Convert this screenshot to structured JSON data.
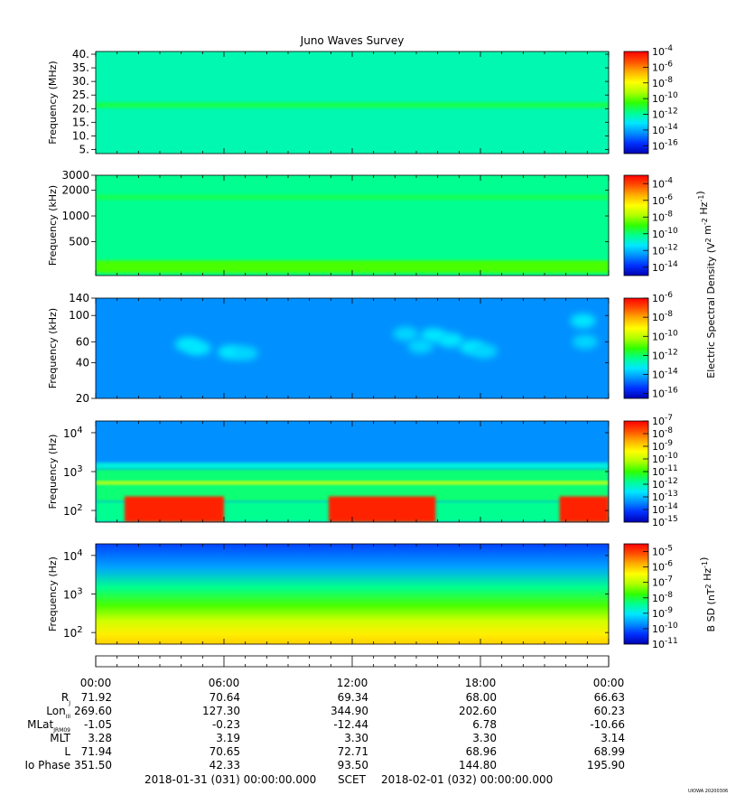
{
  "title": "Juno Waves Survey",
  "colors": {
    "colormap": [
      "#0000b0",
      "#0030ff",
      "#0090ff",
      "#00e8ff",
      "#00ff90",
      "#30ff00",
      "#b0ff00",
      "#ffff00",
      "#ffb000",
      "#ff5000",
      "#ff0000"
    ]
  },
  "chart_data": [
    {
      "type": "heatmap",
      "panel": "Electric 1",
      "ylabel": "Frequency (MHz)",
      "yscale": "linear",
      "ylim": [
        3.5,
        41
      ],
      "yticks": [
        {
          "v": 40,
          "label": "40."
        },
        {
          "v": 35,
          "label": "35."
        },
        {
          "v": 30,
          "label": "30."
        },
        {
          "v": 25,
          "label": "25."
        },
        {
          "v": 20,
          "label": "20."
        },
        {
          "v": 15,
          "label": "15."
        },
        {
          "v": 10,
          "label": "10."
        },
        {
          "v": 5,
          "label": "5."
        }
      ],
      "background_level": 0.37,
      "bands": [
        {
          "y0": 20.3,
          "y1": 22.3,
          "level": 0.45
        }
      ],
      "blobs": [],
      "colorbar": {
        "scale": "log",
        "range_exp": [
          -17,
          -4
        ],
        "tick_exps": [
          -4,
          -6,
          -8,
          -10,
          -12,
          -14,
          -16
        ]
      }
    },
    {
      "type": "heatmap",
      "panel": "Electric 2",
      "ylabel": "Frequency (kHz)",
      "yscale": "log",
      "ylim": [
        200,
        3000
      ],
      "yticks": [
        {
          "v": 3000,
          "label": "3000"
        },
        {
          "v": 2000,
          "label": "2000"
        },
        {
          "v": 1000,
          "label": "1000"
        },
        {
          "v": 500,
          "label": "500"
        }
      ],
      "background_level": 0.4,
      "bands": [
        {
          "y0": 1550,
          "y1": 1780,
          "level": 0.44
        },
        {
          "y0": 215,
          "y1": 300,
          "level": 0.52
        }
      ],
      "blobs": [],
      "colorbar": {
        "scale": "log",
        "range_exp": [
          -15,
          -3
        ],
        "tick_exps": [
          -4,
          -6,
          -8,
          -10,
          -12,
          -14
        ]
      }
    },
    {
      "type": "heatmap",
      "panel": "Electric 3",
      "ylabel": "Frequency (kHz)",
      "yscale": "log",
      "ylim": [
        20,
        140
      ],
      "yticks": [
        {
          "v": 140,
          "label": "140"
        },
        {
          "v": 100,
          "label": "100"
        },
        {
          "v": 60,
          "label": "60"
        },
        {
          "v": 40,
          "label": "40"
        },
        {
          "v": 20,
          "label": "20"
        }
      ],
      "background_level": 0.2,
      "bands": [],
      "blobs": [
        {
          "t": 4.3,
          "f": 57,
          "level": 0.3
        },
        {
          "t": 4.8,
          "f": 53,
          "level": 0.3
        },
        {
          "t": 6.3,
          "f": 49,
          "level": 0.3
        },
        {
          "t": 7.0,
          "f": 48,
          "level": 0.28
        },
        {
          "t": 14.5,
          "f": 70,
          "level": 0.28
        },
        {
          "t": 15.8,
          "f": 68,
          "level": 0.3
        },
        {
          "t": 16.6,
          "f": 62,
          "level": 0.3
        },
        {
          "t": 17.6,
          "f": 54,
          "level": 0.3
        },
        {
          "t": 18.2,
          "f": 50,
          "level": 0.28
        },
        {
          "t": 15.2,
          "f": 55,
          "level": 0.28
        },
        {
          "t": 22.8,
          "f": 90,
          "level": 0.3
        },
        {
          "t": 22.9,
          "f": 60,
          "level": 0.28
        }
      ],
      "colorbar": {
        "scale": "log",
        "range_exp": [
          -16.5,
          -6
        ],
        "tick_exps": [
          -6,
          -8,
          -10,
          -12,
          -14,
          -16
        ]
      }
    },
    {
      "type": "heatmap",
      "panel": "Electric 4",
      "ylabel": "Frequency (Hz)",
      "yscale": "log",
      "ylim": [
        50,
        20000
      ],
      "yticks": [
        {
          "v": 10000,
          "label": "10^4"
        },
        {
          "v": 1000,
          "label": "10^3"
        },
        {
          "v": 100,
          "label": "10^2"
        }
      ],
      "background_level": 0.2,
      "bands": [
        {
          "y0": 1150,
          "y1": 1700,
          "level": 0.33
        },
        {
          "y0": 170,
          "y1": 1150,
          "level": 0.42
        },
        {
          "y0": 470,
          "y1": 560,
          "level": 0.66
        },
        {
          "y0": 50,
          "y1": 170,
          "level": 0.4
        }
      ],
      "blocks": [
        {
          "t0": 1.35,
          "t1": 6.0,
          "f0": 50,
          "f1": 230,
          "level": 0.96
        },
        {
          "t0": 10.9,
          "t1": 15.9,
          "f0": 50,
          "f1": 230,
          "level": 0.96
        },
        {
          "t0": 21.7,
          "t1": 24.0,
          "f0": 50,
          "f1": 230,
          "level": 0.96
        }
      ],
      "blobs": [],
      "colorbar": {
        "scale": "log",
        "range_exp": [
          -15,
          -7
        ],
        "tick_exps": [
          -7,
          -8,
          -9,
          -10,
          -11,
          -12,
          -13,
          -14,
          -15
        ]
      }
    },
    {
      "type": "heatmap",
      "panel": "Magnetic",
      "ylabel": "Frequency (Hz)",
      "yscale": "log",
      "ylim": [
        50,
        20000
      ],
      "yticks": [
        {
          "v": 10000,
          "label": "10^4"
        },
        {
          "v": 1000,
          "label": "10^3"
        },
        {
          "v": 100,
          "label": "10^2"
        }
      ],
      "gradient_stops": [
        {
          "f": 20000,
          "level": 0.12
        },
        {
          "f": 5000,
          "level": 0.22
        },
        {
          "f": 1500,
          "level": 0.4
        },
        {
          "f": 500,
          "level": 0.52
        },
        {
          "f": 200,
          "level": 0.64
        },
        {
          "f": 90,
          "level": 0.72
        },
        {
          "f": 50,
          "level": 0.76
        }
      ],
      "blobs": [],
      "colorbar": {
        "scale": "log",
        "range_exp": [
          -11,
          -4.5
        ],
        "tick_exps": [
          -5,
          -6,
          -7,
          -8,
          -9,
          -10,
          -11
        ]
      }
    }
  ],
  "colorbar_labels": {
    "electric": "Electric Spectral Density (V^2 m^-2 Hz^-1)",
    "magnetic": "B SD (nT^2 Hz^-1)"
  },
  "x_axis": {
    "range_hours": [
      0,
      24
    ],
    "ticks": [
      "00:00",
      "06:00",
      "12:00",
      "18:00",
      "00:00"
    ]
  },
  "ephemeris": {
    "rows": [
      {
        "label": "R",
        "sub": "J",
        "values": [
          "71.92",
          "70.64",
          "69.34",
          "68.00",
          "66.63"
        ]
      },
      {
        "label": "Lon",
        "sub": "III",
        "values": [
          "269.60",
          "127.30",
          "344.90",
          "202.60",
          "60.23"
        ]
      },
      {
        "label": "MLat",
        "sub": "JRM09",
        "values": [
          "-1.05",
          "-0.23",
          "-12.44",
          "6.78",
          "-10.66"
        ]
      },
      {
        "label": "MLT",
        "sub": "",
        "values": [
          "3.28",
          "3.19",
          "3.30",
          "3.30",
          "3.14"
        ]
      },
      {
        "label": "L",
        "sub": "",
        "values": [
          "71.94",
          "70.65",
          "72.71",
          "68.96",
          "68.99"
        ]
      },
      {
        "label": "Io Phase",
        "sub": "",
        "values": [
          "351.50",
          "42.33",
          "93.50",
          "144.80",
          "195.90"
        ]
      }
    ],
    "start": "2018-01-31 (031) 00:00:00.000",
    "scet": "SCET",
    "end": "2018-02-01 (032) 00:00:00.000"
  },
  "stamp": "UIOWA 20200306"
}
